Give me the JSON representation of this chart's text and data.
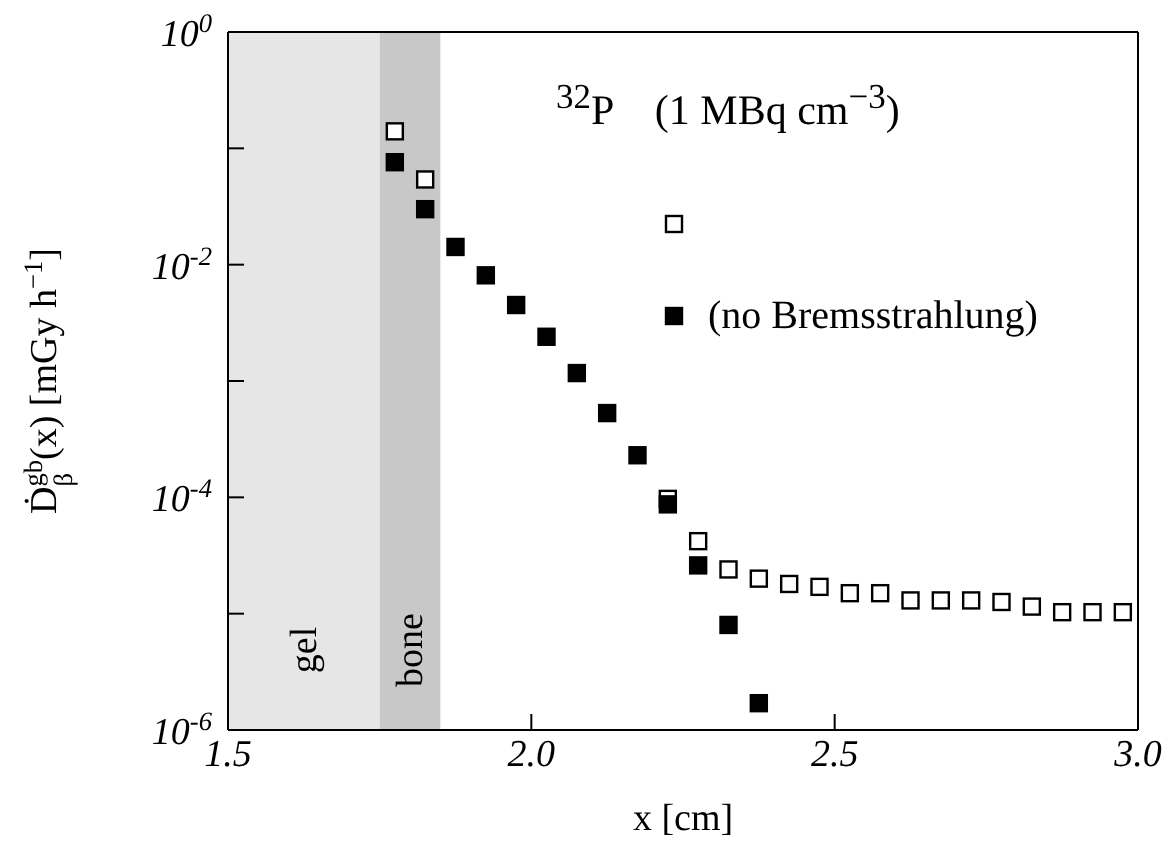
{
  "chart_data": {
    "type": "scatter",
    "title": "$^{32}$P    (1 MBq cm$^{−3}$)",
    "xlabel": "x [cm]",
    "ylabel": "Ḋ$_{β}$$^{gb}$(x) [mGy h$^{−1}$]",
    "series": [
      {
        "color": "#ffffff",
        "x": [
          1.775,
          1.825,
          2.225,
          2.275,
          2.325,
          2.375,
          2.425,
          2.475,
          2.525,
          2.575,
          2.625,
          2.675,
          2.725,
          2.775,
          2.825,
          2.875,
          2.925,
          2.975
        ],
        "values": [
          0.14,
          0.054,
          9.7e-05,
          4.2e-05,
          2.4e-05,
          2e-05,
          1.8e-05,
          1.7e-05,
          1.5e-05,
          1.5e-05,
          1.3e-05,
          1.3e-05,
          1.3e-05,
          1.26e-05,
          1.15e-05,
          1.03e-05,
          1.03e-05,
          1.03e-05
        ]
      },
      {
        "name": "(no Bremsstrahlung)",
        "color": "#000000",
        "x": [
          1.775,
          1.825,
          1.875,
          1.925,
          1.975,
          2.025,
          2.075,
          2.125,
          2.175,
          2.225,
          2.275,
          2.325,
          2.375
        ],
        "values": [
          0.076,
          0.03,
          0.0142,
          0.0081,
          0.0045,
          0.0024,
          0.00117,
          0.00053,
          0.00023,
          8.7e-05,
          2.6e-05,
          8e-06,
          1.7e-06
        ]
      }
    ],
    "bands": [
      {
        "axis": "x",
        "from": 1.5,
        "to": 1.75,
        "label": "gel",
        "color": "#e6e6e6"
      },
      {
        "axis": "x",
        "from": 1.75,
        "to": 1.85,
        "label": "bone",
        "color": "#c8c8c8"
      }
    ],
    "log": "y",
    "xlim": [
      1.5,
      3.0
    ],
    "xticks": [
      {
        "value": 1.5,
        "label": "1.5"
      },
      {
        "value": 2,
        "label": "2.0"
      },
      {
        "value": 2.5,
        "label": "2.5"
      },
      {
        "value": 3,
        "label": "3.0"
      }
    ],
    "ylim": [
      1e-06,
      1
    ],
    "yticks": [
      {
        "value": 1,
        "label": "10$^{0}$"
      },
      {
        "value": 0.1,
        "label": null
      },
      {
        "value": 0.01,
        "label": "10$^{-2}$"
      },
      {
        "value": 0.001,
        "label": null
      },
      {
        "value": 0.0001,
        "label": "10$^{-4}$"
      },
      {
        "value": 1e-05,
        "label": null
      },
      {
        "value": 1e-06,
        "label": "10$^{-6}$"
      }
    ],
    "marker": "square",
    "legend": "right"
  }
}
